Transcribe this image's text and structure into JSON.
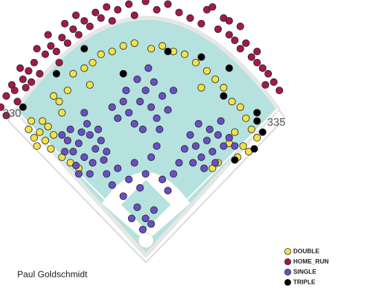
{
  "chart_data": {
    "type": "scatter",
    "title": "Paul Goldschmidt",
    "annotations": [
      "330",
      "335"
    ],
    "xlim": [
      -260,
      260
    ],
    "ylim": [
      -60,
      430
    ],
    "legend": "lower right",
    "series": [
      {
        "name": "DOUBLE",
        "color": "#f3e14c",
        "x": [
          -190,
          -200,
          -175,
          -185,
          -210,
          -195,
          -180,
          -165,
          -205,
          -170,
          -150,
          -155,
          -165,
          -140,
          -130,
          -110,
          -95,
          -80,
          -60,
          -40,
          -20,
          10,
          30,
          50,
          70,
          90,
          110,
          125,
          140,
          155,
          170,
          180,
          190,
          200,
          175,
          185,
          160,
          150,
          165,
          130,
          120,
          -150,
          -120,
          -135,
          -100,
          100
        ],
        "values": [
          195,
          185,
          205,
          215,
          200,
          170,
          180,
          190,
          215,
          165,
          230,
          250,
          260,
          270,
          300,
          310,
          320,
          335,
          340,
          350,
          355,
          345,
          350,
          340,
          335,
          320,
          305,
          290,
          275,
          250,
          240,
          220,
          200,
          185,
          170,
          160,
          195,
          175,
          150,
          140,
          130,
          150,
          130,
          140,
          280,
          275
        ]
      },
      {
        "name": "HOME_RUN",
        "color": "#a3194c",
        "x": [
          -250,
          -240,
          -230,
          -260,
          -220,
          -210,
          -200,
          -190,
          -235,
          -250,
          -215,
          -180,
          -170,
          -160,
          -150,
          -140,
          -130,
          -120,
          -110,
          -100,
          -90,
          -80,
          -70,
          -60,
          -50,
          -30,
          -20,
          0,
          20,
          40,
          60,
          -155,
          -195,
          -145,
          -175,
          -125,
          -205,
          -225,
          80,
          100,
          110,
          130,
          140,
          150,
          160,
          170,
          180,
          190,
          200,
          210,
          220,
          230,
          240,
          150,
          120,
          170,
          200,
          215
        ],
        "values": [
          260,
          280,
          250,
          240,
          290,
          305,
          320,
          300,
          270,
          225,
          275,
          335,
          350,
          340,
          365,
          355,
          380,
          370,
          395,
          385,
          410,
          400,
          420,
          395,
          415,
          425,
          405,
          430,
          415,
          425,
          410,
          320,
          345,
          390,
          370,
          405,
          285,
          310,
          400,
          390,
          415,
          380,
          400,
          370,
          360,
          345,
          355,
          330,
          320,
          310,
          300,
          285,
          270,
          395,
          420,
          385,
          340,
          280
        ]
      },
      {
        "name": "SINGLE",
        "color": "#6a4fc4",
        "x": [
          -130,
          -120,
          -110,
          -100,
          -90,
          -140,
          -115,
          -95,
          -125,
          -105,
          -80,
          -135,
          -150,
          -85,
          -70,
          -120,
          -100,
          -145,
          -75,
          -110,
          -30,
          -10,
          10,
          20,
          -20,
          0,
          30,
          -40,
          -50,
          40,
          -15,
          15,
          -5,
          25,
          -35,
          50,
          -60,
          5,
          90,
          110,
          120,
          130,
          100,
          140,
          80,
          115,
          95,
          150,
          125,
          70,
          105,
          135,
          160,
          85,
          -50,
          -30,
          -60,
          -20,
          0,
          10,
          20,
          -10,
          30,
          -40,
          -15,
          0,
          -5,
          10,
          15,
          -25,
          40,
          50,
          -70,
          60
        ],
        "values": [
          160,
          175,
          150,
          190,
          165,
          180,
          195,
          140,
          135,
          210,
          180,
          200,
          190,
          200,
          160,
          120,
          120,
          160,
          145,
          230,
          230,
          250,
          240,
          220,
          210,
          270,
          260,
          250,
          220,
          235,
          290,
          285,
          200,
          200,
          270,
          270,
          240,
          310,
          170,
          180,
          160,
          190,
          150,
          170,
          190,
          200,
          210,
          185,
          140,
          165,
          130,
          215,
          170,
          140,
          130,
          110,
          100,
          140,
          120,
          150,
          170,
          95,
          110,
          80,
          60,
          40,
          20,
          30,
          55,
          40,
          90,
          120,
          120,
          140
        ]
      },
      {
        "name": "TRIPLE",
        "color": "#000000",
        "x": [
          -220,
          -110,
          -40,
          40,
          100,
          150,
          140,
          200,
          210,
          195,
          160,
          200,
          -160
        ],
        "values": [
          240,
          345,
          300,
          340,
          330,
          310,
          260,
          230,
          195,
          165,
          145,
          215,
          300
        ]
      }
    ]
  }
}
